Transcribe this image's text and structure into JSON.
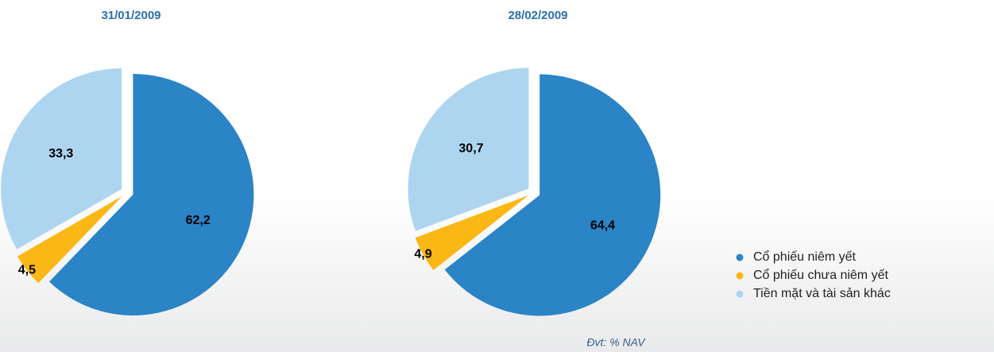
{
  "chart_data": [
    {
      "type": "pie",
      "title": "31/01/2009",
      "categories": [
        "Cổ phiếu niêm yết",
        "Cổ phiếu chưa niêm yết",
        "Tiền mặt và tài sản khác"
      ],
      "values": [
        62.2,
        4.5,
        33.3
      ],
      "value_labels": [
        "62,2",
        "4,5",
        "33,3"
      ],
      "colors": [
        "#2a84c6",
        "#fbb715",
        "#aed5f0"
      ]
    },
    {
      "type": "pie",
      "title": "28/02/2009",
      "categories": [
        "Cổ phiếu niêm yết",
        "Cổ phiếu chưa niêm yết",
        "Tiền mặt và tài sản khác"
      ],
      "values": [
        64.4,
        4.9,
        30.7
      ],
      "value_labels": [
        "64,4",
        "4,9",
        "30,7"
      ],
      "colors": [
        "#2a84c6",
        "#fbb715",
        "#aed5f0"
      ]
    }
  ],
  "footnote": "Đvt: % NAV"
}
